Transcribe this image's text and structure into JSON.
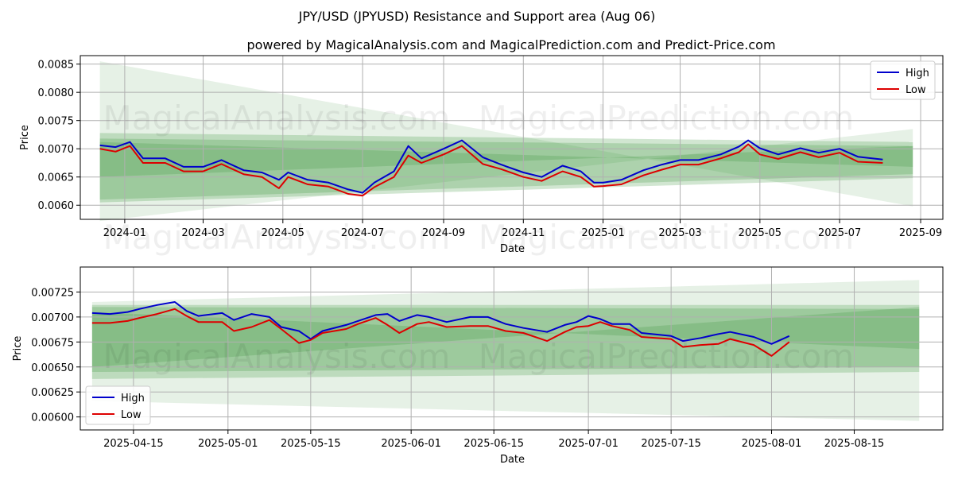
{
  "title": "JPY/USD (JPYUSD) Resistance and Support area (Aug 06)",
  "subtitle": "powered by MagicalAnalysis.com and MagicalPrediction.com and Predict-Price.com",
  "watermarks": [
    "MagicalAnalysis.com",
    "MagicalPrediction.com"
  ],
  "colors": {
    "high": "#0000cc",
    "low": "#dd0000",
    "band": "#2e8b2e"
  },
  "chart_data": [
    {
      "type": "line",
      "xlabel": "Date",
      "ylabel": "Price",
      "xlim": [
        "2023-11-28",
        "2025-09-18"
      ],
      "ylim": [
        0.00575,
        0.00865
      ],
      "xticks": [
        "2024-01",
        "2024-03",
        "2024-05",
        "2024-07",
        "2024-09",
        "2024-11",
        "2025-01",
        "2025-03",
        "2025-05",
        "2025-07",
        "2025-09"
      ],
      "xtick_dates": [
        "2024-01-01",
        "2024-03-01",
        "2024-05-01",
        "2024-07-01",
        "2024-09-01",
        "2024-11-01",
        "2025-01-01",
        "2025-03-01",
        "2025-05-01",
        "2025-07-01",
        "2025-09-01"
      ],
      "yticks": [
        "0.0060",
        "0.0065",
        "0.0070",
        "0.0075",
        "0.0080",
        "0.0085"
      ],
      "grid": true,
      "legend_position": "top-right",
      "x": [
        "2023-12-13",
        "2023-12-25",
        "2024-01-05",
        "2024-01-15",
        "2024-02-01",
        "2024-02-15",
        "2024-03-01",
        "2024-03-15",
        "2024-04-01",
        "2024-04-15",
        "2024-04-28",
        "2024-05-05",
        "2024-05-20",
        "2024-06-05",
        "2024-06-20",
        "2024-07-01",
        "2024-07-10",
        "2024-07-25",
        "2024-08-05",
        "2024-08-15",
        "2024-09-01",
        "2024-09-15",
        "2024-10-01",
        "2024-10-15",
        "2024-11-01",
        "2024-11-15",
        "2024-12-01",
        "2024-12-15",
        "2024-12-25",
        "2025-01-01",
        "2025-01-15",
        "2025-02-01",
        "2025-02-15",
        "2025-03-01",
        "2025-03-15",
        "2025-04-01",
        "2025-04-15",
        "2025-04-22",
        "2025-05-01",
        "2025-05-15",
        "2025-06-01",
        "2025-06-15",
        "2025-07-01",
        "2025-07-15",
        "2025-08-03"
      ],
      "series": [
        {
          "name": "High",
          "values": [
            0.00706,
            0.00703,
            0.00712,
            0.00683,
            0.00683,
            0.00668,
            0.00668,
            0.0068,
            0.00662,
            0.00658,
            0.00645,
            0.00658,
            0.00645,
            0.0064,
            0.00628,
            0.00622,
            0.0064,
            0.0066,
            0.00705,
            0.00683,
            0.007,
            0.00715,
            0.00685,
            0.00672,
            0.00658,
            0.0065,
            0.0067,
            0.0066,
            0.0064,
            0.0064,
            0.00645,
            0.00662,
            0.00672,
            0.0068,
            0.0068,
            0.0069,
            0.00704,
            0.00715,
            0.00701,
            0.0069,
            0.00701,
            0.00693,
            0.007,
            0.00686,
            0.00681
          ]
        },
        {
          "name": "Low",
          "values": [
            0.007,
            0.00695,
            0.00705,
            0.00675,
            0.00675,
            0.0066,
            0.0066,
            0.00673,
            0.00655,
            0.0065,
            0.0063,
            0.0065,
            0.00637,
            0.00633,
            0.0062,
            0.00617,
            0.00632,
            0.0065,
            0.00688,
            0.00675,
            0.0069,
            0.00705,
            0.00673,
            0.00664,
            0.0065,
            0.00643,
            0.0066,
            0.0065,
            0.00633,
            0.00634,
            0.00637,
            0.00653,
            0.00663,
            0.00672,
            0.00672,
            0.00683,
            0.00694,
            0.00708,
            0.0069,
            0.00682,
            0.00694,
            0.00685,
            0.00693,
            0.00677,
            0.00675
          ]
        }
      ],
      "bands": [
        {
          "start": "2023-12-13",
          "end": "2025-08-26",
          "top_start": 0.00855,
          "top_end": 0.00598,
          "bottom_start": 0.00572,
          "bottom_end": 0.00735,
          "alpha": 0.12
        },
        {
          "start": "2023-12-13",
          "end": "2025-08-26",
          "top_start": 0.00728,
          "top_end": 0.00712,
          "bottom_start": 0.00605,
          "bottom_end": 0.00648,
          "alpha": 0.22
        },
        {
          "start": "2023-12-13",
          "end": "2025-08-26",
          "top_start": 0.00718,
          "top_end": 0.00705,
          "bottom_start": 0.0061,
          "bottom_end": 0.00655,
          "alpha": 0.22
        },
        {
          "start": "2023-12-13",
          "end": "2025-08-26",
          "top_start": 0.00712,
          "top_end": 0.00668,
          "bottom_start": 0.0065,
          "bottom_end": 0.00705,
          "alpha": 0.2
        }
      ]
    },
    {
      "type": "line",
      "xlabel": "Date",
      "ylabel": "Price",
      "xlim": [
        "2025-04-06",
        "2025-08-30"
      ],
      "ylim": [
        0.00587,
        0.0075
      ],
      "xticks": [
        "2025-04-15",
        "2025-05-01",
        "2025-05-15",
        "2025-06-01",
        "2025-06-15",
        "2025-07-01",
        "2025-07-15",
        "2025-08-01",
        "2025-08-15"
      ],
      "yticks": [
        "0.00600",
        "0.00625",
        "0.00650",
        "0.00675",
        "0.00700",
        "0.00725"
      ],
      "grid": true,
      "legend_position": "bottom-left",
      "x": [
        "2025-04-08",
        "2025-04-11",
        "2025-04-14",
        "2025-04-16",
        "2025-04-19",
        "2025-04-22",
        "2025-04-24",
        "2025-04-26",
        "2025-04-30",
        "2025-05-02",
        "2025-05-05",
        "2025-05-08",
        "2025-05-10",
        "2025-05-13",
        "2025-05-15",
        "2025-05-17",
        "2025-05-21",
        "2025-05-23",
        "2025-05-26",
        "2025-05-28",
        "2025-05-30",
        "2025-06-02",
        "2025-06-04",
        "2025-06-07",
        "2025-06-11",
        "2025-06-14",
        "2025-06-17",
        "2025-06-20",
        "2025-06-24",
        "2025-06-27",
        "2025-06-29",
        "2025-07-01",
        "2025-07-03",
        "2025-07-05",
        "2025-07-08",
        "2025-07-10",
        "2025-07-15",
        "2025-07-17",
        "2025-07-20",
        "2025-07-23",
        "2025-07-25",
        "2025-07-29",
        "2025-08-01",
        "2025-08-04"
      ],
      "series": [
        {
          "name": "High",
          "values": [
            0.00704,
            0.00703,
            0.00705,
            0.00708,
            0.00712,
            0.00715,
            0.00706,
            0.00701,
            0.00704,
            0.00697,
            0.00703,
            0.007,
            0.0069,
            0.00686,
            0.00678,
            0.00686,
            0.00692,
            0.00696,
            0.00702,
            0.00703,
            0.00696,
            0.00702,
            0.007,
            0.00695,
            0.007,
            0.007,
            0.00693,
            0.00689,
            0.00685,
            0.00692,
            0.00695,
            0.00701,
            0.00698,
            0.00693,
            0.00693,
            0.00684,
            0.00681,
            0.00676,
            0.00679,
            0.00683,
            0.00685,
            0.0068,
            0.00673,
            0.00681
          ]
        },
        {
          "name": "Low",
          "values": [
            0.00694,
            0.00694,
            0.00696,
            0.00699,
            0.00703,
            0.00708,
            0.00701,
            0.00695,
            0.00695,
            0.00686,
            0.0069,
            0.00697,
            0.00688,
            0.00674,
            0.00677,
            0.00684,
            0.00688,
            0.00693,
            0.00699,
            0.00692,
            0.00684,
            0.00693,
            0.00695,
            0.0069,
            0.00691,
            0.00691,
            0.00686,
            0.00684,
            0.00676,
            0.00685,
            0.0069,
            0.00691,
            0.00695,
            0.00691,
            0.00687,
            0.0068,
            0.00678,
            0.0067,
            0.00672,
            0.00673,
            0.00678,
            0.00672,
            0.00661,
            0.00675
          ]
        }
      ],
      "bands": [
        {
          "start": "2025-04-08",
          "end": "2025-08-26",
          "top_start": 0.00715,
          "top_end": 0.00737,
          "bottom_start": 0.00616,
          "bottom_end": 0.00596,
          "alpha": 0.12
        },
        {
          "start": "2025-04-08",
          "end": "2025-08-26",
          "top_start": 0.00712,
          "top_end": 0.00712,
          "bottom_start": 0.00638,
          "bottom_end": 0.00645,
          "alpha": 0.22
        },
        {
          "start": "2025-04-08",
          "end": "2025-08-26",
          "top_start": 0.0071,
          "top_end": 0.00708,
          "bottom_start": 0.00645,
          "bottom_end": 0.0065,
          "alpha": 0.22
        },
        {
          "start": "2025-04-08",
          "end": "2025-08-26",
          "top_start": 0.00705,
          "top_end": 0.00668,
          "bottom_start": 0.0065,
          "bottom_end": 0.0071,
          "alpha": 0.2
        }
      ]
    }
  ]
}
